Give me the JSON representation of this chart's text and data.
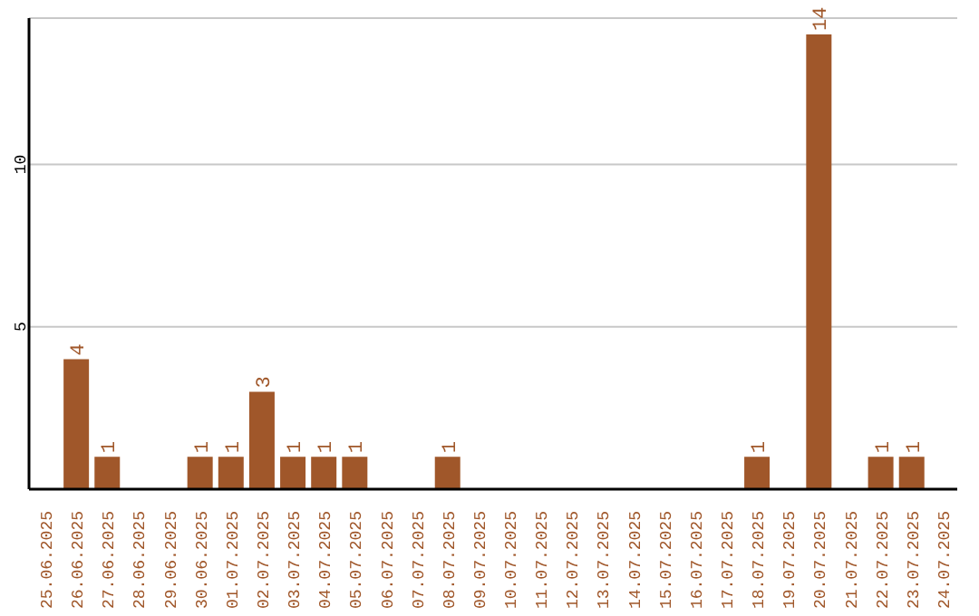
{
  "chart_data": {
    "type": "bar",
    "categories": [
      "25.06.2025",
      "26.06.2025",
      "27.06.2025",
      "28.06.2025",
      "29.06.2025",
      "30.06.2025",
      "01.07.2025",
      "02.07.2025",
      "03.07.2025",
      "04.07.2025",
      "05.07.2025",
      "06.07.2025",
      "07.07.2025",
      "08.07.2025",
      "09.07.2025",
      "10.07.2025",
      "11.07.2025",
      "12.07.2025",
      "13.07.2025",
      "14.07.2025",
      "15.07.2025",
      "16.07.2025",
      "17.07.2025",
      "18.07.2025",
      "19.07.2025",
      "20.07.2025",
      "21.07.2025",
      "22.07.2025",
      "23.07.2025",
      "24.07.2025"
    ],
    "values": [
      0,
      4,
      1,
      0,
      0,
      1,
      1,
      3,
      1,
      1,
      1,
      0,
      0,
      1,
      0,
      0,
      0,
      0,
      0,
      0,
      0,
      0,
      0,
      1,
      0,
      14,
      0,
      1,
      1,
      0
    ],
    "value_labels": [
      null,
      "4",
      "1",
      null,
      null,
      "1",
      "1",
      "3",
      "1",
      "1",
      "1",
      null,
      null,
      "1",
      null,
      null,
      null,
      null,
      null,
      null,
      null,
      null,
      null,
      "1",
      null,
      "14",
      null,
      "1",
      "1",
      null
    ],
    "color": "#a0572a",
    "ylim": [
      0,
      14.5
    ],
    "yticks": [
      5,
      10
    ],
    "grid": "y"
  }
}
